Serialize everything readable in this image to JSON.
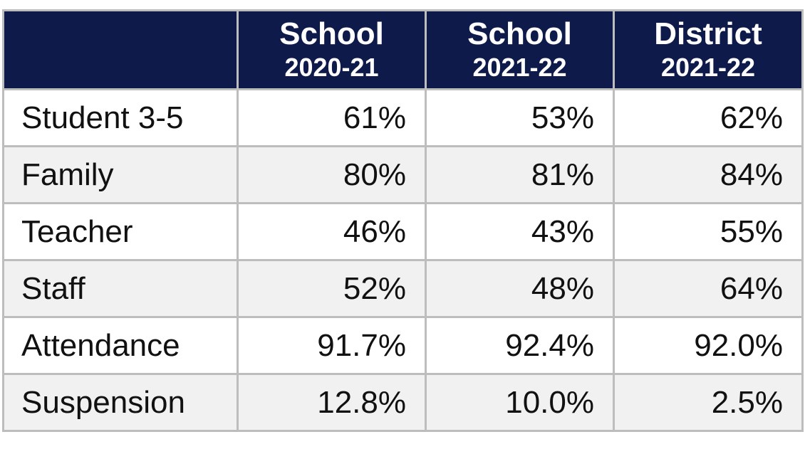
{
  "table": {
    "columns": [
      {
        "line1": "School",
        "line2": "2020-21"
      },
      {
        "line1": "School",
        "line2": "2021-22"
      },
      {
        "line1": "District",
        "line2": "2021-22"
      }
    ],
    "rows": [
      [
        "Student 3-5",
        "61%",
        "53%",
        "62%"
      ],
      [
        "Family",
        "80%",
        "81%",
        "84%"
      ],
      [
        "Teacher",
        "46%",
        "43%",
        "55%"
      ],
      [
        "Staff",
        "52%",
        "48%",
        "64%"
      ],
      [
        "Attendance",
        "91.7%",
        "92.4%",
        "92.0%"
      ],
      [
        "Suspension",
        "12.8%",
        "10.0%",
        "2.5%"
      ]
    ]
  }
}
